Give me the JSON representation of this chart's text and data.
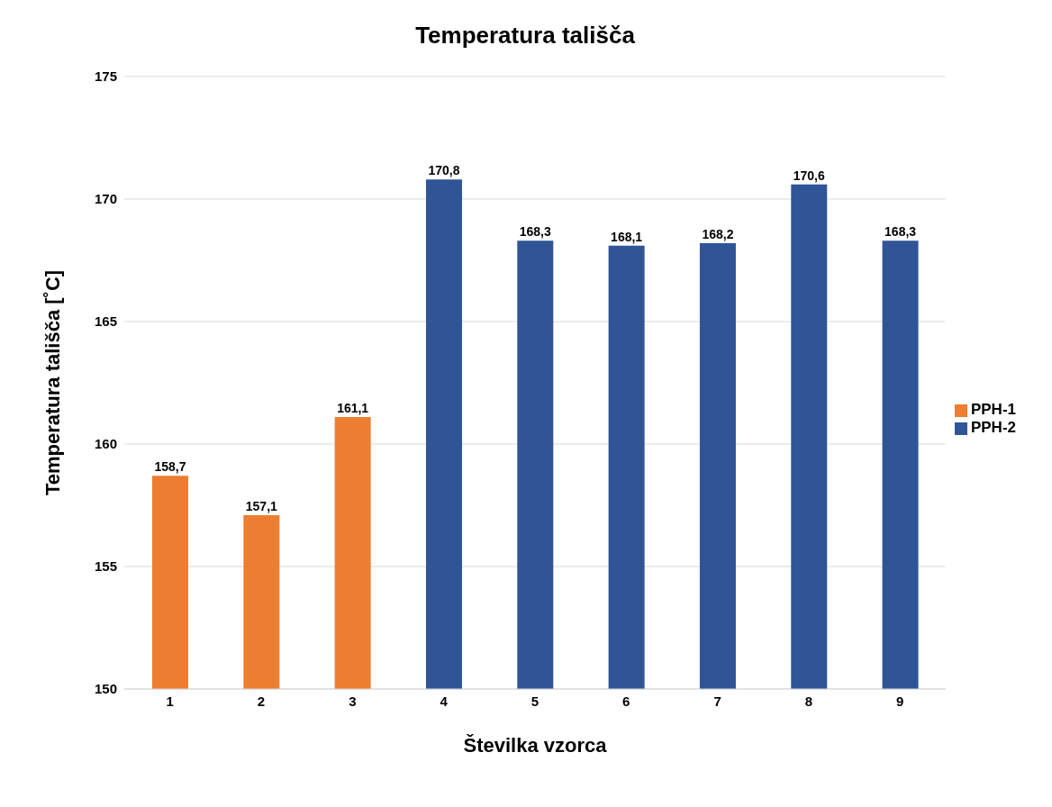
{
  "chart_data": {
    "type": "bar",
    "title": "Temperatura tališča",
    "xlabel": "Številka vzorca",
    "ylabel": "Temperatura tališča [˚C]",
    "categories": [
      "1",
      "2",
      "3",
      "4",
      "5",
      "6",
      "7",
      "8",
      "9"
    ],
    "series": [
      {
        "name": "PPH-1",
        "color": "#ed7d31",
        "values": [
          158.7,
          157.1,
          161.1,
          null,
          null,
          null,
          null,
          null,
          null
        ],
        "value_labels": [
          "158,7",
          "157,1",
          "161,1",
          null,
          null,
          null,
          null,
          null,
          null
        ]
      },
      {
        "name": "PPH-2",
        "color": "#2f5597",
        "values": [
          null,
          null,
          null,
          170.8,
          168.3,
          168.1,
          168.2,
          170.6,
          168.3
        ],
        "value_labels": [
          null,
          null,
          null,
          "170,8",
          "168,3",
          "168,1",
          "168,2",
          "170,6",
          "168,3"
        ]
      }
    ],
    "ylim": [
      150,
      175
    ],
    "yticks": [
      150,
      155,
      160,
      165,
      170,
      175
    ],
    "grid": "y",
    "legend": "right"
  }
}
